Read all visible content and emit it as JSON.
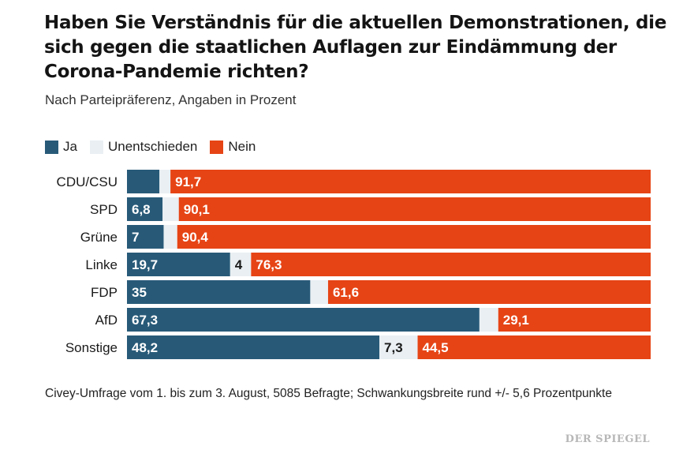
{
  "title": "Haben Sie Verständnis für die aktuellen Demonstrationen, die sich gegen die staatlichen Auflagen zur Eindämmung der Corona-Pandemie richten?",
  "subtitle": "Nach Parteipräferenz, Angaben in Prozent",
  "footnote": "Civey-Umfrage vom 1. bis zum 3. August, 5085 Befragte; Schwankungsbreite rund +/- 5,6 Prozentpunkte",
  "brand": "DER SPIEGEL",
  "colors": {
    "ja": "#285a78",
    "unentschieden": "#e9eff3",
    "nein": "#e64415"
  },
  "chart_data": {
    "type": "bar",
    "stacked": true,
    "orientation": "horizontal",
    "title": "Haben Sie Verständnis für die aktuellen Demonstrationen, die sich gegen die staatlichen Auflagen zur Eindämmung der Corona-Pandemie richten?",
    "xlim": [
      0,
      100
    ],
    "legend_position": "top-left",
    "categories": [
      "CDU/CSU",
      "SPD",
      "Grüne",
      "Linke",
      "FDP",
      "AfD",
      "Sonstige"
    ],
    "series": [
      {
        "name": "Ja",
        "key": "ja",
        "values": [
          6.2,
          6.8,
          7,
          19.7,
          35,
          67.3,
          48.2
        ],
        "labels": [
          "",
          "6,8",
          "7",
          "19,7",
          "35",
          "67,3",
          "48,2"
        ]
      },
      {
        "name": "Unentschieden",
        "key": "unentschieden",
        "values": [
          2.1,
          3.1,
          2.6,
          4,
          3.4,
          3.6,
          7.3
        ],
        "labels": [
          "",
          "",
          "",
          "4",
          "",
          "",
          "7,3"
        ]
      },
      {
        "name": "Nein",
        "key": "nein",
        "values": [
          91.7,
          90.1,
          90.4,
          76.3,
          61.6,
          29.1,
          44.5
        ],
        "labels": [
          "91,7",
          "90,1",
          "90,4",
          "76,3",
          "61,6",
          "29,1",
          "44,5"
        ]
      }
    ]
  }
}
